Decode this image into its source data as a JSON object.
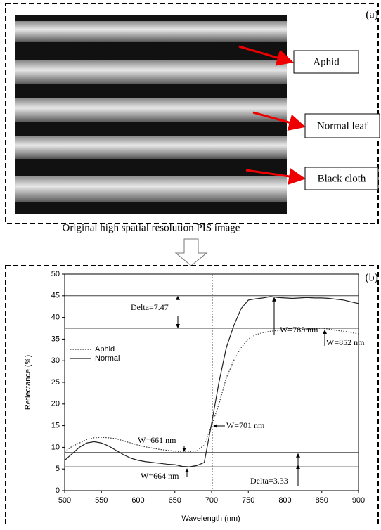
{
  "panel_a": {
    "label": "(a)",
    "caption": "Original high spatial resolution PIS image",
    "callouts": [
      "Aphid",
      "Normal leaf",
      "Black cloth"
    ]
  },
  "chart_data": {
    "type": "line",
    "label": "(b)",
    "x_label": "Wavelength (nm)",
    "y_label": "Reflectance (%)",
    "x": [
      500,
      510,
      520,
      530,
      540,
      550,
      560,
      570,
      580,
      590,
      600,
      610,
      620,
      630,
      640,
      650,
      660,
      670,
      680,
      690,
      700,
      710,
      720,
      730,
      740,
      750,
      760,
      770,
      780,
      790,
      800,
      810,
      820,
      830,
      840,
      850,
      860,
      870,
      880,
      890,
      900
    ],
    "series": [
      {
        "name": "Aphid",
        "color": "#333333",
        "style": "dotted",
        "values": [
          9,
          10.2,
          11,
          11.8,
          12.2,
          12.3,
          12.2,
          12,
          11.5,
          11,
          10.5,
          10.1,
          9.8,
          9.5,
          9.3,
          9.1,
          9,
          9,
          9.2,
          10.5,
          15,
          20,
          26,
          30,
          33,
          35,
          36,
          36.5,
          36.8,
          37,
          37,
          37.1,
          37.2,
          37.3,
          37.4,
          37.5,
          37.3,
          37,
          36.8,
          36.5,
          36.2
        ]
      },
      {
        "name": "Normal",
        "color": "#222222",
        "style": "solid",
        "values": [
          7,
          8.5,
          10,
          11,
          11.3,
          11,
          10.3,
          9.3,
          8.3,
          7.5,
          7,
          6.7,
          6.5,
          6.3,
          6.1,
          6,
          5.6,
          5.5,
          5.8,
          6.5,
          15.5,
          25,
          33,
          38,
          42,
          44,
          44.3,
          44.5,
          44.8,
          44.6,
          44.5,
          44.4,
          44.5,
          44.6,
          44.5,
          44.5,
          44.4,
          44.2,
          44,
          43.6,
          43.2
        ]
      }
    ],
    "reference_lines": [
      45,
      37.5,
      8.8,
      5.5
    ],
    "vline": 701,
    "annotations": [
      "Delta=7.47",
      "W=785 nm",
      "W=852 nm",
      "W=661 nm",
      "W=664 nm",
      "W=701 nm",
      "Delta=3.33"
    ],
    "xlim": [
      500,
      900
    ],
    "xticks": [
      500,
      550,
      600,
      650,
      700,
      750,
      800,
      850,
      900
    ],
    "ylim": [
      0,
      50
    ],
    "yticks": [
      0,
      5,
      10,
      15,
      20,
      25,
      30,
      35,
      40,
      45,
      50
    ],
    "legend": "upper left"
  }
}
